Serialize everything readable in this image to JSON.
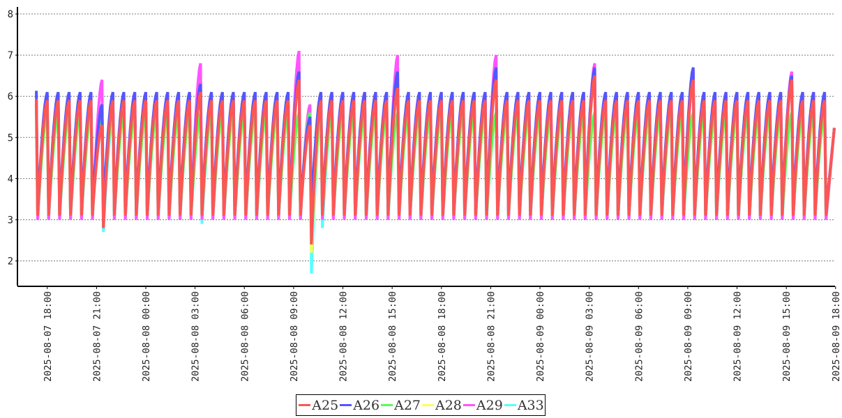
{
  "chart_data": {
    "type": "line",
    "title": "",
    "xlabel": "",
    "ylabel": "",
    "xlim": [
      "2025-08-07 16:11",
      "2025-08-09 17:58"
    ],
    "ylim": [
      1.4,
      8.17
    ],
    "y_ticks": [
      "2",
      "3",
      "4",
      "5",
      "6",
      "7",
      "8"
    ],
    "x_ticks": [
      "2025-08-07 18:00",
      "2025-08-07 21:00",
      "2025-08-08 00:00",
      "2025-08-08 03:00",
      "2025-08-08 06:00",
      "2025-08-08 09:00",
      "2025-08-08 12:00",
      "2025-08-08 15:00",
      "2025-08-08 18:00",
      "2025-08-08 21:00",
      "2025-08-09 00:00",
      "2025-08-09 03:00",
      "2025-08-09 06:00",
      "2025-08-09 09:00",
      "2025-08-09 12:00",
      "2025-08-09 15:00",
      "2025-08-09 18:00"
    ],
    "grid": "horizontal dashed",
    "legend_position": "bottom-center",
    "data_range": [
      "2025-08-07 17:20",
      "2025-08-09 17:55"
    ],
    "series": [
      {
        "name": "A25",
        "color": "#ff5555",
        "peak": 5.9,
        "trough": 3.1,
        "events": [
          {
            "time": "2025-08-07 21:23",
            "peak": 5.3,
            "trough": 2.8
          },
          {
            "time": "2025-08-08 03:27",
            "peak": 6.1
          },
          {
            "time": "2025-08-08 09:25",
            "peak": 6.4
          },
          {
            "time": "2025-08-08 10:00",
            "peak": 5.3,
            "trough": 2.4
          },
          {
            "time": "2025-08-08 15:24",
            "peak": 6.2
          },
          {
            "time": "2025-08-08 21:23",
            "peak": 6.4
          },
          {
            "time": "2025-08-09 03:24",
            "peak": 6.5
          },
          {
            "time": "2025-08-09 09:23",
            "peak": 6.4
          },
          {
            "time": "2025-08-09 15:22",
            "peak": 6.4
          }
        ]
      },
      {
        "name": "A26",
        "color": "#5555ff",
        "peak": 6.1,
        "trough": 3.2,
        "events": [
          {
            "time": "2025-08-07 21:23",
            "peak": 5.8
          },
          {
            "time": "2025-08-08 03:27",
            "peak": 6.3
          },
          {
            "time": "2025-08-08 09:25",
            "peak": 6.6
          },
          {
            "time": "2025-08-08 10:00",
            "peak": 5.5
          },
          {
            "time": "2025-08-08 15:24",
            "peak": 6.6
          },
          {
            "time": "2025-08-08 21:23",
            "peak": 6.7
          },
          {
            "time": "2025-08-09 03:24",
            "peak": 6.7
          },
          {
            "time": "2025-08-09 09:23",
            "peak": 6.7
          },
          {
            "time": "2025-08-09 15:22",
            "peak": 6.5
          }
        ]
      },
      {
        "name": "A27",
        "color": "#55ff55",
        "peak": 5.6,
        "trough": 3.1,
        "events": [
          {
            "time": "2025-08-08 10:00",
            "trough": 2.4
          }
        ]
      },
      {
        "name": "A28",
        "color": "#ffff55",
        "peak": 5.5,
        "trough": 3.15,
        "events": [
          {
            "time": "2025-08-07 21:23",
            "trough": 3.4
          },
          {
            "time": "2025-08-08 10:00",
            "trough": 2.2
          }
        ]
      },
      {
        "name": "A29",
        "color": "#ff55ff",
        "peak": 5.8,
        "trough": 3.0,
        "events": [
          {
            "time": "2025-08-07 21:23",
            "peak": 6.4
          },
          {
            "time": "2025-08-08 03:27",
            "peak": 6.8
          },
          {
            "time": "2025-08-08 09:25",
            "peak": 7.1
          },
          {
            "time": "2025-08-08 15:24",
            "peak": 7.0
          },
          {
            "time": "2025-08-08 21:23",
            "peak": 7.0
          },
          {
            "time": "2025-08-09 03:24",
            "peak": 6.8
          },
          {
            "time": "2025-08-09 09:23",
            "peak": 6.6
          },
          {
            "time": "2025-08-09 15:22",
            "peak": 6.6
          }
        ]
      },
      {
        "name": "A33",
        "color": "#55ffff",
        "peak": 5.5,
        "trough": 3.0,
        "events": [
          {
            "time": "2025-08-07 21:23",
            "trough": 2.7
          },
          {
            "time": "2025-08-08 03:27",
            "trough": 2.9
          },
          {
            "time": "2025-08-08 10:00",
            "trough": 1.7
          },
          {
            "time": "2025-08-08 10:40",
            "trough": 2.8
          }
        ]
      }
    ]
  }
}
